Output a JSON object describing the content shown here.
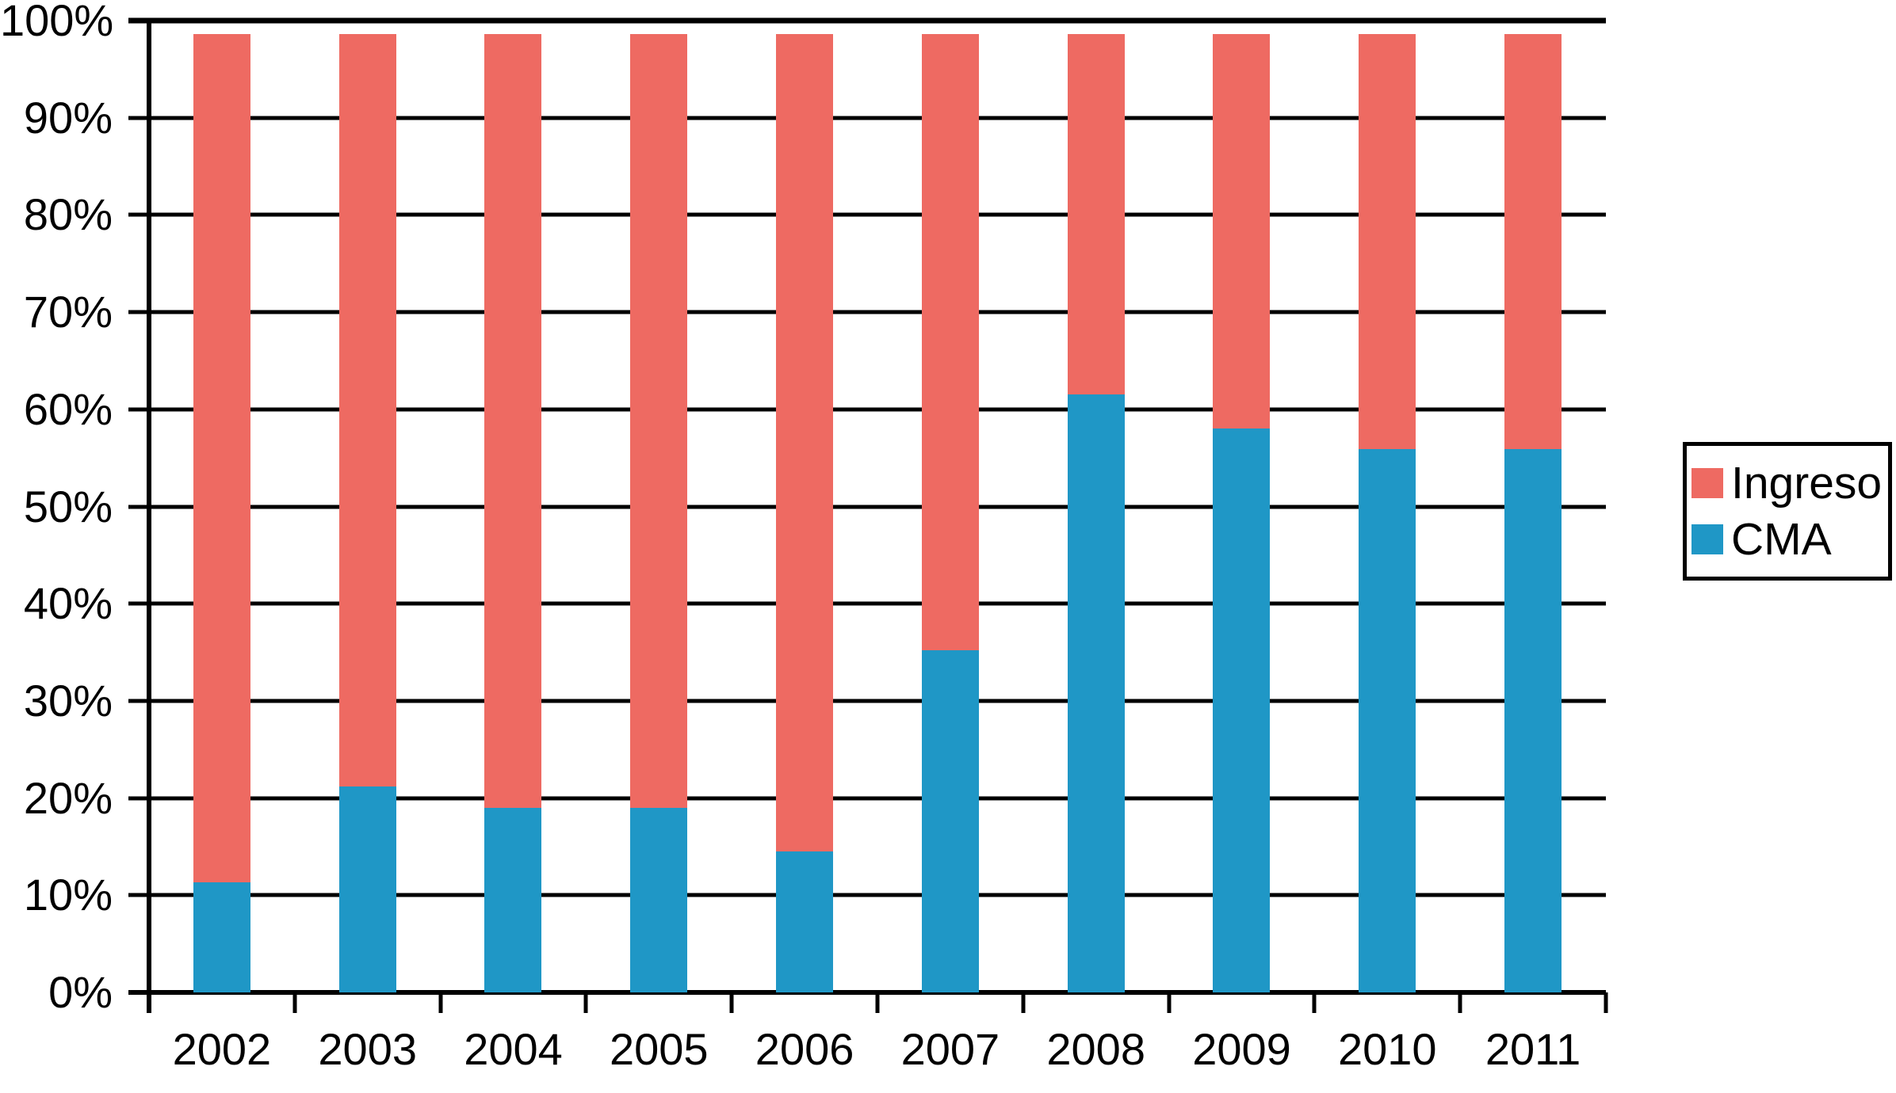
{
  "chart_data": {
    "type": "bar",
    "stacked": true,
    "title": "",
    "xlabel": "",
    "ylabel": "",
    "categories": [
      "2002",
      "2003",
      "2004",
      "2005",
      "2006",
      "2007",
      "2008",
      "2009",
      "2010",
      "2011"
    ],
    "series": [
      {
        "name": "Ingreso",
        "color": "#EE6A62",
        "values": [
          87.3,
          77.4,
          79.6,
          79.6,
          84.1,
          63.4,
          37.1,
          40.6,
          42.7,
          42.7
        ]
      },
      {
        "name": "CMA",
        "color": "#1F97C6",
        "values": [
          11.3,
          21.2,
          19.0,
          19.0,
          14.5,
          35.2,
          61.5,
          58.0,
          55.9,
          55.9
        ]
      }
    ],
    "stack_totals_pct": [
      98.6,
      98.6,
      98.6,
      98.6,
      98.6,
      98.6,
      98.6,
      98.6,
      98.6,
      98.6
    ],
    "ylim": [
      0,
      100
    ],
    "ytick_step": 10,
    "ytick_labels": [
      "0%",
      "10%",
      "20%",
      "30%",
      "40%",
      "50%",
      "60%",
      "70%",
      "80%",
      "90%",
      "100%"
    ],
    "grid": true,
    "legend_position": "right",
    "axis_color": "#000000",
    "background_color": "#FFFFFF"
  },
  "legend": {
    "entries": [
      {
        "label": "Ingreso",
        "color": "#EE6A62"
      },
      {
        "label": "CMA",
        "color": "#1F97C6"
      }
    ]
  }
}
